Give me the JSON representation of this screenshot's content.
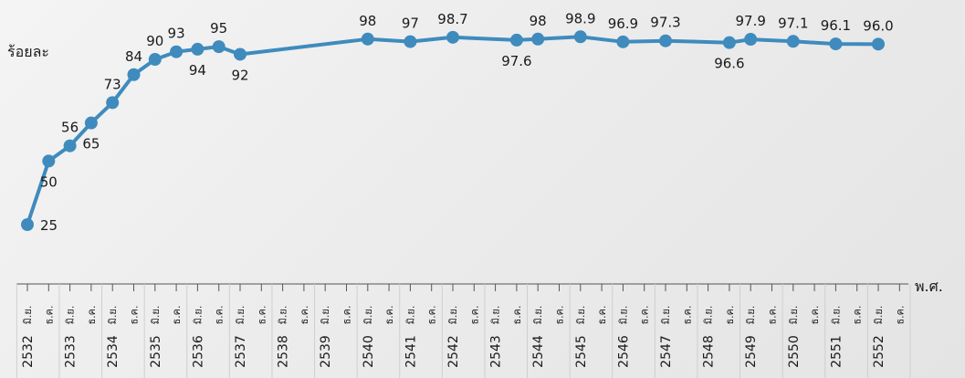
{
  "chart_data": {
    "type": "line",
    "ylabel": "ร้อยละ",
    "xlabel": "พ.ศ.",
    "color": "#3f8bbd",
    "half_labels": [
      "มิ.ย.",
      "ธ.ค."
    ],
    "years": [
      "2532",
      "2533",
      "2534",
      "2535",
      "2536",
      "2537",
      "2538",
      "2539",
      "2540",
      "2541",
      "2542",
      "2543",
      "2544",
      "2545",
      "2546",
      "2547",
      "2548",
      "2549",
      "2550",
      "2551",
      "2552"
    ],
    "points": [
      {
        "slot": 0,
        "value": 25,
        "label": "25",
        "pos": "right"
      },
      {
        "slot": 1,
        "value": 50,
        "label": "50",
        "pos": "below"
      },
      {
        "slot": 2,
        "value": 56,
        "label": "56",
        "pos": "above"
      },
      {
        "slot": 3,
        "value": 65,
        "label": "65",
        "pos": "below"
      },
      {
        "slot": 4,
        "value": 73,
        "label": "73",
        "pos": "above"
      },
      {
        "slot": 5,
        "value": 84,
        "label": "84",
        "pos": "above"
      },
      {
        "slot": 6,
        "value": 90,
        "label": "90",
        "pos": "above"
      },
      {
        "slot": 7,
        "value": 93,
        "label": "93",
        "pos": "above"
      },
      {
        "slot": 8,
        "value": 94,
        "label": "94",
        "pos": "below"
      },
      {
        "slot": 9,
        "value": 95,
        "label": "95",
        "pos": "above"
      },
      {
        "slot": 10,
        "value": 92,
        "label": "92",
        "pos": "below"
      },
      {
        "slot": 16,
        "value": 98,
        "label": "98",
        "pos": "above"
      },
      {
        "slot": 18,
        "value": 97,
        "label": "97",
        "pos": "above"
      },
      {
        "slot": 20,
        "value": 98.7,
        "label": "98.7",
        "pos": "above"
      },
      {
        "slot": 23,
        "value": 97.6,
        "label": "97.6",
        "pos": "below"
      },
      {
        "slot": 24,
        "value": 98,
        "label": "98",
        "pos": "above"
      },
      {
        "slot": 26,
        "value": 98.9,
        "label": "98.9",
        "pos": "above"
      },
      {
        "slot": 28,
        "value": 96.9,
        "label": "96.9",
        "pos": "above"
      },
      {
        "slot": 30,
        "value": 97.3,
        "label": "97.3",
        "pos": "above"
      },
      {
        "slot": 33,
        "value": 96.6,
        "label": "96.6",
        "pos": "below"
      },
      {
        "slot": 34,
        "value": 97.9,
        "label": "97.9",
        "pos": "above"
      },
      {
        "slot": 36,
        "value": 97.1,
        "label": "97.1",
        "pos": "above"
      },
      {
        "slot": 38,
        "value": 96.1,
        "label": "96.1",
        "pos": "above"
      },
      {
        "slot": 40,
        "value": 96.0,
        "label": "96.0",
        "pos": "above"
      }
    ]
  }
}
